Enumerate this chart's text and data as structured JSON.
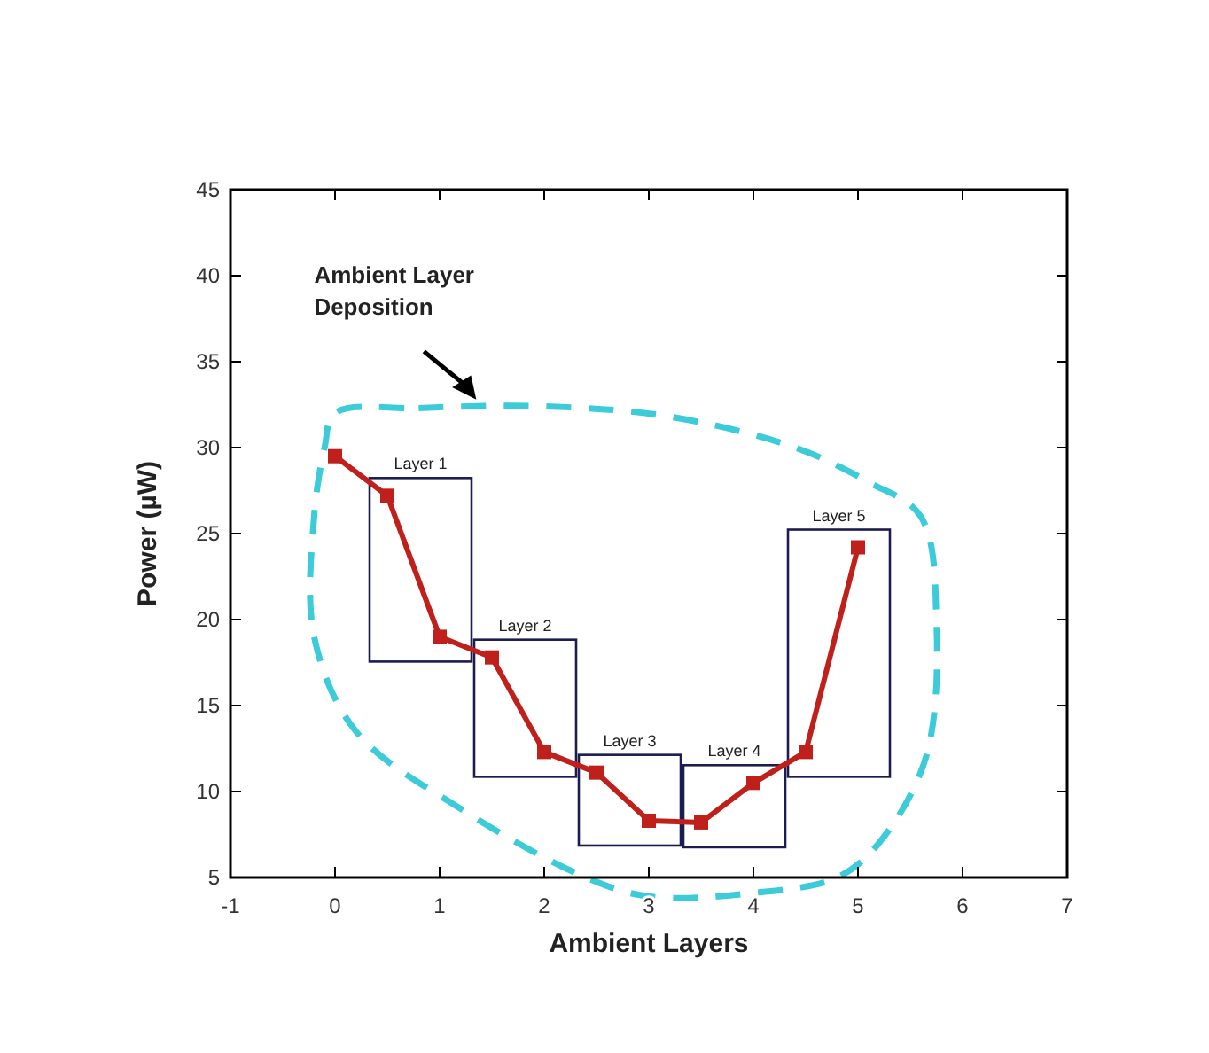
{
  "chart_data": {
    "type": "line",
    "xlabel": "Ambient Layers",
    "ylabel": "Power (µW)",
    "x": [
      0,
      0.5,
      1,
      1.5,
      2,
      2.5,
      3,
      3.5,
      4,
      4.5,
      5
    ],
    "series": [
      {
        "color": "#c0201c",
        "values": [
          29.5,
          27.2,
          19,
          17.8,
          12.3,
          11.1,
          8.3,
          8.2,
          10.5,
          12.3,
          24.2
        ]
      }
    ],
    "xlim": [
      -1,
      7
    ],
    "xticks": [
      -1,
      0,
      1,
      2,
      3,
      4,
      5,
      6,
      7
    ],
    "ylim": [
      5,
      45
    ],
    "yticks": [
      5,
      10,
      15,
      20,
      25,
      30,
      35,
      40,
      45
    ],
    "marker": "square",
    "line_style": "solid",
    "grid": false,
    "annotations": [
      "Ambient Layer Deposition",
      "Layer 1",
      "Layer 2",
      "Layer 3",
      "Layer 4",
      "Layer 5"
    ]
  }
}
